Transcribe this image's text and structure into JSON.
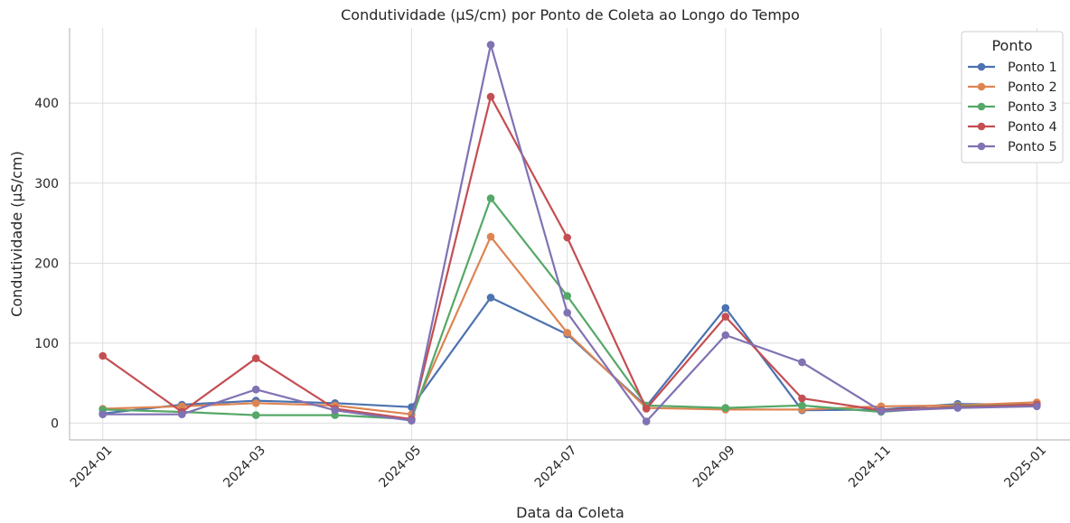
{
  "chart_data": {
    "type": "line",
    "title": "Condutividade (µS/cm) por Ponto de Coleta ao Longo do Tempo",
    "xlabel": "Data da Coleta",
    "ylabel": "Condutividade (µS/cm)",
    "x": [
      "2024-01-01",
      "2024-02-01",
      "2024-03-01",
      "2024-04-01",
      "2024-05-01",
      "2024-06-01",
      "2024-07-01",
      "2024-08-01",
      "2024-09-01",
      "2024-10-01",
      "2024-11-01",
      "2024-12-01",
      "2025-01-01"
    ],
    "xticks": [
      "2024-01",
      "2024-03",
      "2024-05",
      "2024-07",
      "2024-09",
      "2024-11",
      "2025-01"
    ],
    "yticks": [
      0,
      100,
      200,
      300,
      400
    ],
    "ylim": [
      -21,
      494
    ],
    "grid": true,
    "legend": {
      "title": "Ponto",
      "position": "top-right"
    },
    "series": [
      {
        "name": "Ponto 1",
        "color": "#4c72b0",
        "values": [
          12,
          23,
          28,
          25,
          20,
          157,
          111,
          21,
          144,
          16,
          17,
          24,
          23
        ]
      },
      {
        "name": "Ponto 2",
        "color": "#dd8452",
        "values": [
          18,
          21,
          25,
          22,
          11,
          233,
          113,
          19,
          17,
          17,
          21,
          22,
          26
        ]
      },
      {
        "name": "Ponto 3",
        "color": "#55a868",
        "values": [
          17,
          14,
          10,
          10,
          5,
          281,
          159,
          22,
          19,
          22,
          14,
          21,
          23
        ]
      },
      {
        "name": "Ponto 4",
        "color": "#c44e52",
        "values": [
          84,
          14,
          81,
          18,
          5,
          408,
          232,
          18,
          133,
          31,
          16,
          20,
          23
        ]
      },
      {
        "name": "Ponto 5",
        "color": "#8172b3",
        "values": [
          11,
          11,
          42,
          16,
          3,
          473,
          138,
          2,
          110,
          76,
          15,
          19,
          21
        ]
      }
    ]
  }
}
